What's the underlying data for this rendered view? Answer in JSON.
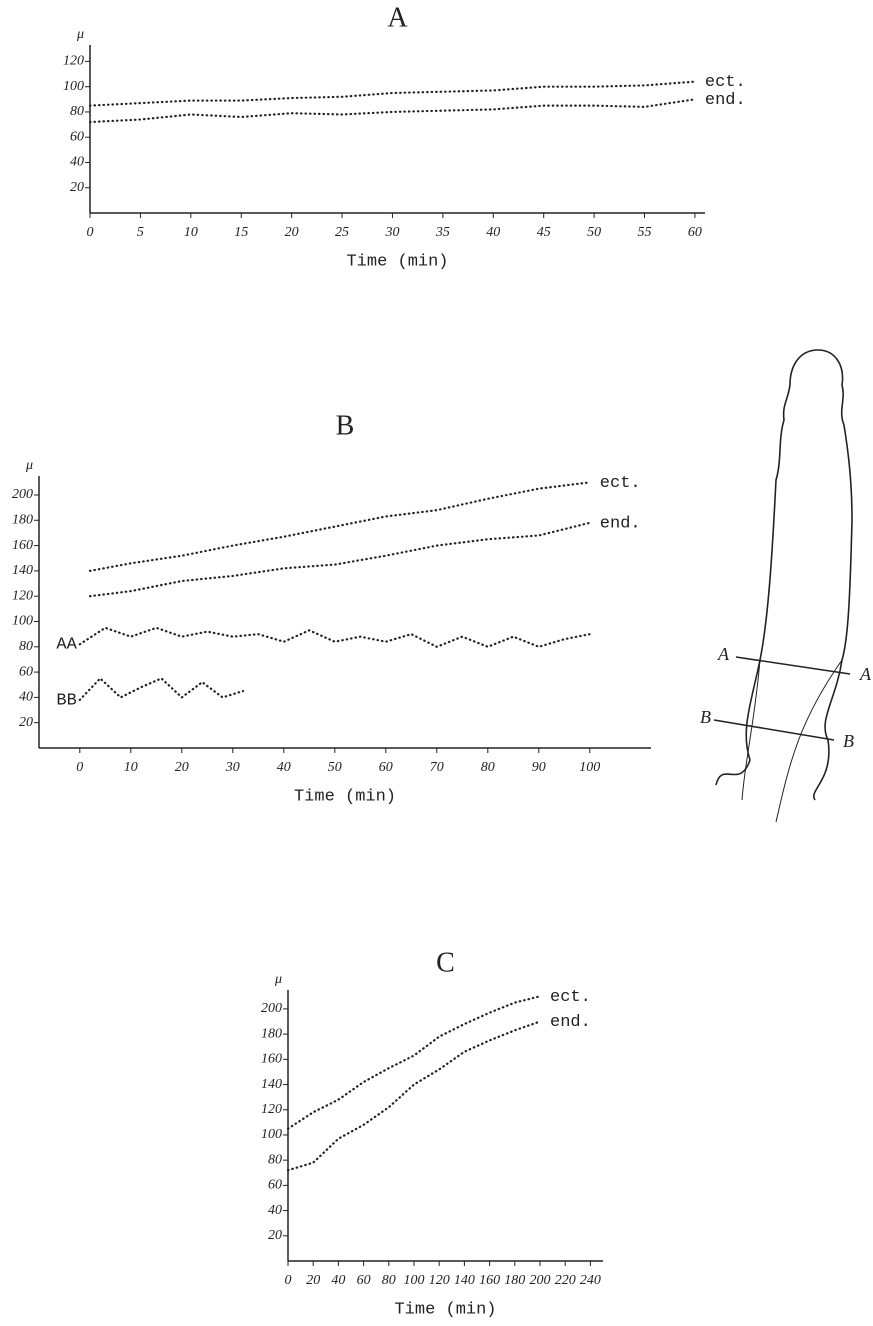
{
  "chart_data": [
    {
      "type": "line",
      "title": "A",
      "y_label": "μ",
      "x_label": "Time (min)",
      "x": [
        0,
        5,
        10,
        15,
        20,
        25,
        30,
        35,
        40,
        45,
        50,
        55,
        60
      ],
      "series": [
        {
          "name": "ect.",
          "color": "#222222",
          "values": [
            85,
            87,
            89,
            89,
            91,
            92,
            95,
            96,
            97,
            100,
            100,
            101,
            104
          ]
        },
        {
          "name": "end.",
          "color": "#222222",
          "values": [
            72,
            74,
            78,
            76,
            79,
            78,
            80,
            81,
            82,
            85,
            85,
            84,
            90
          ]
        }
      ],
      "xlim": [
        0,
        61
      ],
      "xticks": [
        0,
        5,
        10,
        15,
        20,
        25,
        30,
        35,
        40,
        45,
        50,
        55,
        60
      ],
      "ylim": [
        0,
        133
      ],
      "yticks": [
        20,
        40,
        60,
        80,
        100,
        120
      ]
    },
    {
      "type": "line",
      "title": "B",
      "y_label": "μ",
      "x_label": "Time (min)",
      "series": [
        {
          "name": "ect.",
          "color": "#222222",
          "x": [
            2,
            10,
            20,
            30,
            40,
            50,
            60,
            70,
            80,
            90,
            100
          ],
          "values": [
            140,
            146,
            152,
            160,
            167,
            175,
            183,
            188,
            197,
            205,
            210
          ]
        },
        {
          "name": "end.",
          "color": "#222222",
          "x": [
            2,
            10,
            20,
            30,
            40,
            50,
            60,
            70,
            80,
            90,
            100
          ],
          "values": [
            120,
            124,
            132,
            136,
            142,
            145,
            152,
            160,
            165,
            168,
            178
          ]
        },
        {
          "name": "AA",
          "color": "#222222",
          "x": [
            0,
            5,
            10,
            15,
            20,
            25,
            30,
            35,
            40,
            45,
            50,
            55,
            60,
            65,
            70,
            75,
            80,
            85,
            90,
            95,
            100
          ],
          "values": [
            82,
            95,
            88,
            95,
            88,
            92,
            88,
            90,
            84,
            93,
            84,
            88,
            84,
            90,
            80,
            88,
            80,
            88,
            80,
            86,
            90
          ]
        },
        {
          "name": "BB",
          "color": "#222222",
          "x": [
            0,
            4,
            8,
            12,
            16,
            20,
            24,
            28,
            32
          ],
          "values": [
            38,
            55,
            40,
            48,
            55,
            40,
            52,
            40,
            45
          ]
        }
      ],
      "xlim": [
        -8,
        112
      ],
      "xticks": [
        0,
        10,
        20,
        30,
        40,
        50,
        60,
        70,
        80,
        90,
        100
      ],
      "ylim": [
        0,
        215
      ],
      "yticks": [
        20,
        40,
        60,
        80,
        100,
        120,
        140,
        160,
        180,
        200
      ]
    },
    {
      "type": "line",
      "title": "C",
      "y_label": "μ",
      "x_label": "Time (min)",
      "x": [
        0,
        20,
        40,
        60,
        80,
        100,
        120,
        140,
        160,
        180,
        200
      ],
      "series": [
        {
          "name": "ect.",
          "color": "#222222",
          "values": [
            105,
            118,
            128,
            142,
            153,
            163,
            178,
            188,
            197,
            205,
            210
          ]
        },
        {
          "name": "end.",
          "color": "#222222",
          "values": [
            72,
            78,
            97,
            108,
            122,
            140,
            152,
            166,
            175,
            183,
            190
          ]
        }
      ],
      "xlim": [
        0,
        250
      ],
      "xticks": [
        0,
        20,
        40,
        60,
        80,
        100,
        120,
        140,
        160,
        180,
        200,
        220,
        240
      ],
      "ylim": [
        0,
        215
      ],
      "yticks": [
        20,
        40,
        60,
        80,
        100,
        120,
        140,
        160,
        180,
        200
      ]
    }
  ],
  "diagram": {
    "labels": [
      "A",
      "A",
      "B",
      "B"
    ]
  }
}
